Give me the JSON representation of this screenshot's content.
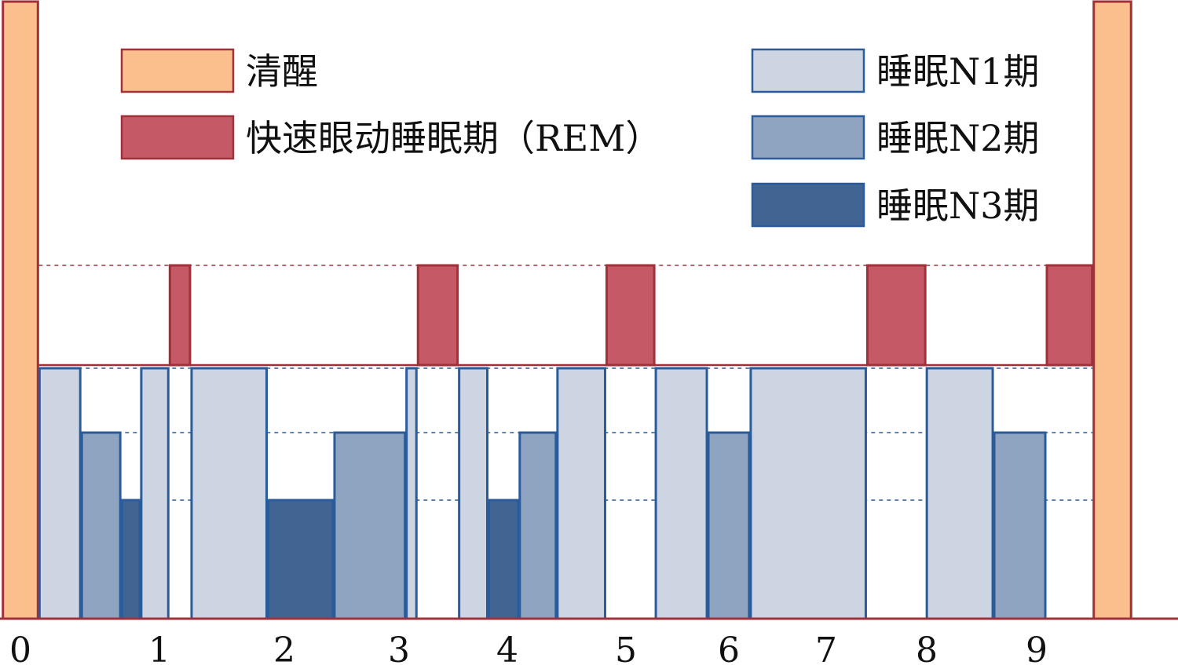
{
  "chart_data": {
    "type": "hypnogram",
    "title": "",
    "xlabel": "",
    "ylabel": "",
    "x_ticks": [
      "0",
      "1",
      "2",
      "3",
      "4",
      "5",
      "6",
      "7",
      "8",
      "9"
    ],
    "legend_placement": "top",
    "stages": [
      {
        "key": "wake",
        "label": "清醒",
        "color": "#FBBF8E",
        "border": "#A0303A"
      },
      {
        "key": "rem",
        "label": "快速眼动睡眠期（REM）",
        "color": "#C55A66",
        "border": "#A0303A"
      },
      {
        "key": "n1",
        "label": "睡眠N1期",
        "color": "#CDD5E2",
        "border": "#2A5B9A"
      },
      {
        "key": "n2",
        "label": "睡眠N2期",
        "color": "#8EA4C0",
        "border": "#2A5B9A"
      },
      {
        "key": "n3",
        "label": "睡眠N3期",
        "color": "#426493",
        "border": "#2A5B9A"
      }
    ],
    "segments": [
      {
        "stage": "wake",
        "start": -0.16,
        "end": 0.16
      },
      {
        "stage": "n1",
        "start": 0.16,
        "end": 0.53
      },
      {
        "stage": "n2",
        "start": 0.53,
        "end": 0.88
      },
      {
        "stage": "n3",
        "start": 0.88,
        "end": 1.05
      },
      {
        "stage": "n1",
        "start": 1.05,
        "end": 1.3
      },
      {
        "stage": "rem",
        "start": 1.3,
        "end": 1.49
      },
      {
        "stage": "n1",
        "start": 1.49,
        "end": 2.16
      },
      {
        "stage": "n3",
        "start": 2.16,
        "end": 2.74
      },
      {
        "stage": "n2",
        "start": 2.74,
        "end": 3.37
      },
      {
        "stage": "n1",
        "start": 3.37,
        "end": 3.47
      },
      {
        "stage": "rem",
        "start": 3.47,
        "end": 3.83
      },
      {
        "stage": "n1",
        "start": 3.83,
        "end": 4.09
      },
      {
        "stage": "n3",
        "start": 4.09,
        "end": 4.36
      },
      {
        "stage": "n2",
        "start": 4.36,
        "end": 4.69
      },
      {
        "stage": "n1",
        "start": 4.69,
        "end": 5.12
      },
      {
        "stage": "rem",
        "start": 5.12,
        "end": 5.55
      },
      {
        "stage": "n1",
        "start": 5.55,
        "end": 6.01
      },
      {
        "stage": "n2",
        "start": 6.01,
        "end": 6.38
      },
      {
        "stage": "n1",
        "start": 6.38,
        "end": 7.4
      },
      {
        "stage": "rem",
        "start": 7.4,
        "end": 7.92
      },
      {
        "stage": "n1",
        "start": 7.92,
        "end": 8.51
      },
      {
        "stage": "n2",
        "start": 8.51,
        "end": 8.97
      },
      {
        "stage": "rem",
        "start": 8.97,
        "end": 9.38
      },
      {
        "stage": "wake",
        "start": 9.38,
        "end": 9.72
      }
    ]
  }
}
